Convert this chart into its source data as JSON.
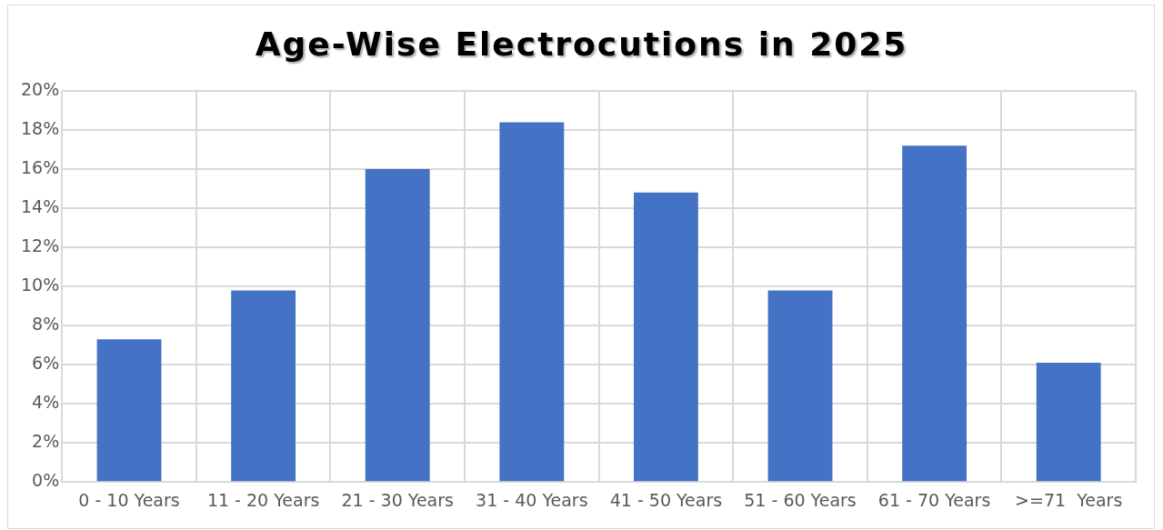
{
  "chart_data": {
    "type": "bar",
    "title": "Age-Wise Electrocutions in 2025",
    "categories": [
      "0 - 10 Years",
      "11 - 20 Years",
      "21 - 30 Years",
      "31 - 40 Years",
      "41 - 50 Years",
      "51 - 60 Years",
      "61 - 70 Years",
      ">=71  Years"
    ],
    "values": [
      7.3,
      9.8,
      16.0,
      18.4,
      14.8,
      9.8,
      17.2,
      6.1
    ],
    "color": "#4472c4",
    "ylim": [
      0,
      20
    ],
    "yticks": [
      {
        "value": 0,
        "label": "0%"
      },
      {
        "value": 2,
        "label": "2%"
      },
      {
        "value": 4,
        "label": "4%"
      },
      {
        "value": 6,
        "label": "6%"
      },
      {
        "value": 8,
        "label": "8%"
      },
      {
        "value": 10,
        "label": "10%"
      },
      {
        "value": 12,
        "label": "12%"
      },
      {
        "value": 14,
        "label": "14%"
      },
      {
        "value": 16,
        "label": "16%"
      },
      {
        "value": 18,
        "label": "18%"
      },
      {
        "value": 20,
        "label": "20%"
      }
    ],
    "grid": true
  }
}
